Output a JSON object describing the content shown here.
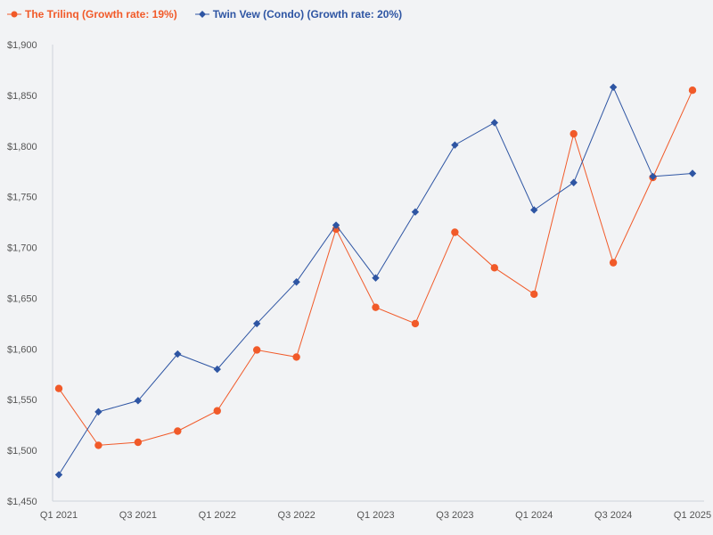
{
  "chart_data": {
    "type": "line",
    "title": "",
    "xlabel": "",
    "ylabel": "",
    "x": [
      "Q1 2021",
      "Q2 2021",
      "Q3 2021",
      "Q4 2021",
      "Q1 2022",
      "Q2 2022",
      "Q3 2022",
      "Q4 2022",
      "Q1 2023",
      "Q2 2023",
      "Q3 2023",
      "Q4 2023",
      "Q1 2024",
      "Q2 2024",
      "Q3 2024",
      "Q4 2024",
      "Q1 2025"
    ],
    "x_tick_labels": [
      "Q1 2021",
      "Q3 2021",
      "Q1 2022",
      "Q3 2022",
      "Q1 2023",
      "Q3 2023",
      "Q1 2024",
      "Q3 2024",
      "Q1 2025"
    ],
    "ylim": [
      1450,
      1900
    ],
    "y_ticks": [
      1450,
      1500,
      1550,
      1600,
      1650,
      1700,
      1750,
      1800,
      1850,
      1900
    ],
    "y_tick_labels": [
      "$1,450",
      "$1,500",
      "$1,550",
      "$1,600",
      "$1,650",
      "$1,700",
      "$1,750",
      "$1,800",
      "$1,850",
      "$1,900"
    ],
    "grid": false,
    "legend_position": "top-left",
    "series": [
      {
        "name": "The Trilinq (Growth rate: 19%)",
        "color": "#f15a29",
        "marker": "circle",
        "values": [
          1561,
          1505,
          1508,
          1519,
          1539,
          1599,
          1592,
          1718,
          1641,
          1625,
          1715,
          1680,
          1654,
          1812,
          1685,
          1769,
          1855
        ]
      },
      {
        "name": "Twin Vew (Condo) (Growth rate: 20%)",
        "color": "#2e55a3",
        "marker": "diamond",
        "values": [
          1476,
          1538,
          1549,
          1595,
          1580,
          1625,
          1666,
          1722,
          1670,
          1735,
          1801,
          1823,
          1737,
          1764,
          1858,
          1770,
          1773
        ]
      }
    ]
  }
}
